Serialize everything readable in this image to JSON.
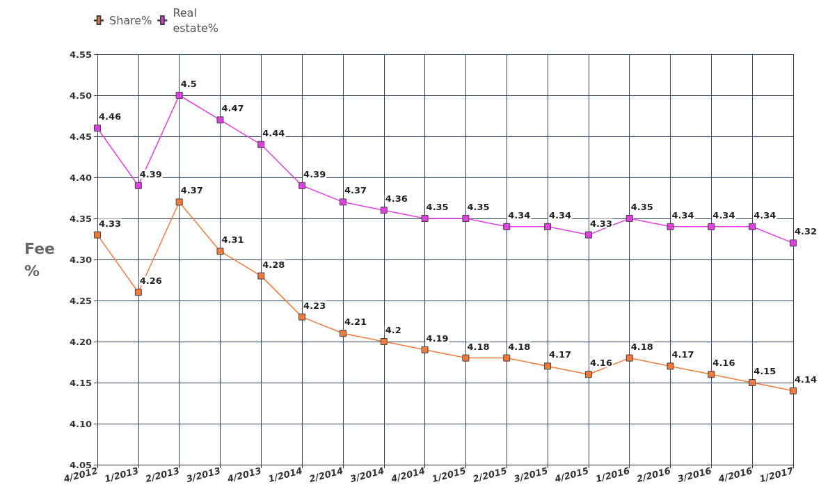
{
  "chart_data": {
    "type": "line",
    "ylabel": "Fee %",
    "categories": [
      "4/2012",
      "1/2013",
      "2/2013",
      "3/2013",
      "4/2013",
      "1/2014",
      "2/2014",
      "3/2014",
      "4/2014",
      "1/2015",
      "2/2015",
      "3/2015",
      "4/2015",
      "1/2016",
      "2/2016",
      "3/2016",
      "4/2016",
      "1/2017"
    ],
    "series": [
      {
        "name": "Share%",
        "color": "#f07a3a",
        "values": [
          4.33,
          4.26,
          4.37,
          4.31,
          4.28,
          4.23,
          4.21,
          4.2,
          4.19,
          4.18,
          4.18,
          4.17,
          4.16,
          4.18,
          4.17,
          4.16,
          4.15,
          4.14
        ]
      },
      {
        "name": "Real estate%",
        "color": "#e040e0",
        "values": [
          4.46,
          4.39,
          4.5,
          4.47,
          4.44,
          4.39,
          4.37,
          4.36,
          4.35,
          4.35,
          4.34,
          4.34,
          4.33,
          4.35,
          4.34,
          4.34,
          4.34,
          4.32
        ]
      }
    ],
    "ylim": [
      4.05,
      4.55
    ],
    "yticks": [
      {
        "value": 4.05,
        "label": "4.05"
      },
      {
        "value": 4.1,
        "label": "4.10"
      },
      {
        "value": 4.15,
        "label": "4.15"
      },
      {
        "value": 4.2,
        "label": "4.20"
      },
      {
        "value": 4.25,
        "label": "4.25"
      },
      {
        "value": 4.3,
        "label": "4.30"
      },
      {
        "value": 4.35,
        "label": "4.35"
      },
      {
        "value": 4.4,
        "label": "4.40"
      },
      {
        "value": 4.45,
        "label": "4.45"
      },
      {
        "value": 4.5,
        "label": "4.50"
      },
      {
        "value": 4.55,
        "label": "4.55"
      }
    ],
    "grid": true,
    "legend": "top left",
    "marker": "square",
    "line_style": "solid",
    "data_labels": true
  }
}
